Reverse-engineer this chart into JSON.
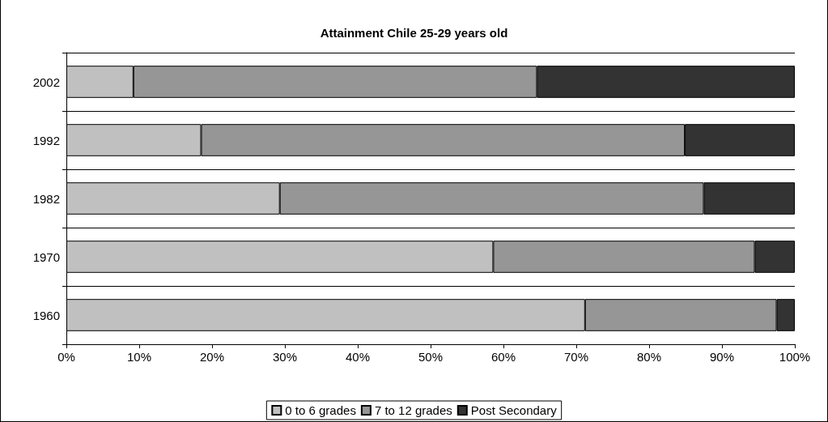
{
  "chart_data": {
    "type": "bar",
    "orientation": "horizontal",
    "stacked": true,
    "title": "Attainment Chile 25-29 years old",
    "categories": [
      "2002",
      "1992",
      "1982",
      "1970",
      "1960"
    ],
    "series": [
      {
        "name": "0 to 6 grades",
        "color": "#c0c0c0",
        "values": [
          9.2,
          18.5,
          29.3,
          58.6,
          71.2
        ]
      },
      {
        "name": "7 to 12 grades",
        "color": "#969696",
        "values": [
          55.4,
          66.4,
          58.2,
          35.9,
          26.3
        ]
      },
      {
        "name": "Post Secondary",
        "color": "#333333",
        "values": [
          35.4,
          15.1,
          12.5,
          5.5,
          2.5
        ]
      }
    ],
    "xlim": [
      0,
      100
    ],
    "xticks": [
      {
        "value": 0,
        "label": "0%"
      },
      {
        "value": 10,
        "label": "10%"
      },
      {
        "value": 20,
        "label": "20%"
      },
      {
        "value": 30,
        "label": "30%"
      },
      {
        "value": 40,
        "label": "40%"
      },
      {
        "value": 50,
        "label": "50%"
      },
      {
        "value": 60,
        "label": "60%"
      },
      {
        "value": 70,
        "label": "70%"
      },
      {
        "value": 80,
        "label": "80%"
      },
      {
        "value": 90,
        "label": "90%"
      },
      {
        "value": 100,
        "label": "100%"
      }
    ],
    "grid": "y",
    "legend": "bottom"
  }
}
